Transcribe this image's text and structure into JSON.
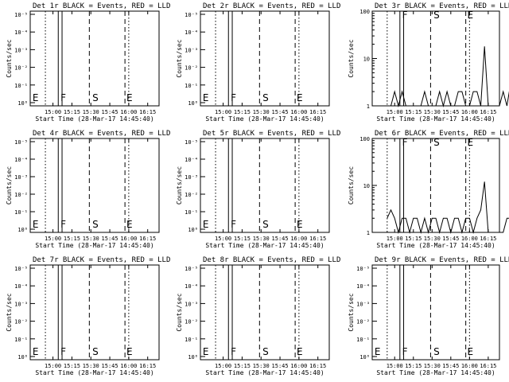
{
  "chart_data": [
    {
      "type": "line",
      "title": "Det 1r BLACK = Events, RED = LLD",
      "xlabel": "Start Time (28-Mar-17 14:45:40)",
      "ylabel": "Counts/sec",
      "x_ticks": [
        "15:00",
        "15:15",
        "15:30",
        "15:45",
        "16:00",
        "16:15"
      ],
      "y_scale": "log",
      "y_ticks": [
        "10⁰",
        "10⁻¹",
        "10⁻²",
        "10⁻³",
        "10⁻⁴",
        "10⁻⁵"
      ],
      "series": [],
      "markers": [
        "E",
        "F",
        "S",
        "E"
      ]
    },
    {
      "type": "line",
      "title": "Det 2r BLACK = Events, RED = LLD",
      "xlabel": "Start Time (28-Mar-17 14:45:40)",
      "ylabel": "Counts/sec",
      "x_ticks": [
        "15:00",
        "15:15",
        "15:30",
        "15:45",
        "16:00",
        "16:15"
      ],
      "y_scale": "log",
      "y_ticks": [
        "10⁰",
        "10⁻¹",
        "10⁻²",
        "10⁻³",
        "10⁻⁴",
        "10⁻⁵"
      ],
      "series": [],
      "markers": [
        "E",
        "F",
        "S",
        "E"
      ]
    },
    {
      "type": "line",
      "title": "Det 3r BLACK = Events, RED = LLD",
      "xlabel": "Start Time (28-Mar-17 14:45:40)",
      "ylabel": "Counts/sec",
      "x_ticks": [
        "15:00",
        "15:15",
        "15:30",
        "15:45",
        "16:00",
        "16:15"
      ],
      "y_scale": "log",
      "y_ticks": [
        "1",
        "10",
        "100"
      ],
      "series": [
        {
          "color": "#000000",
          "x": [
            14.9,
            14.95,
            15.0,
            15.05,
            15.1,
            15.15,
            15.2,
            15.25,
            15.3,
            15.35,
            15.4,
            15.45,
            15.5,
            15.55,
            15.6,
            15.65,
            15.7,
            15.75,
            15.8,
            15.85,
            15.9,
            15.95,
            16.0,
            16.05,
            16.1,
            16.15,
            16.2,
            16.25,
            16.3,
            16.35,
            16.4,
            16.45,
            16.5,
            16.55,
            16.6,
            16.65,
            16.7
          ],
          "y": [
            1,
            1,
            2,
            1,
            2,
            1,
            1,
            1,
            1,
            1,
            2,
            1,
            1,
            1,
            2,
            1,
            2,
            1,
            1,
            2,
            2,
            1,
            1,
            2,
            2,
            1,
            18,
            1,
            1,
            1,
            1,
            2,
            1,
            3,
            1,
            2,
            1
          ]
        }
      ],
      "markers": [
        "F",
        "S",
        "E"
      ]
    },
    {
      "type": "line",
      "title": "Det 4r BLACK = Events, RED = LLD",
      "xlabel": "Start Time (28-Mar-17 14:45:40)",
      "ylabel": "Counts/sec",
      "x_ticks": [
        "15:00",
        "15:15",
        "15:30",
        "15:45",
        "16:00",
        "16:15"
      ],
      "y_scale": "log",
      "y_ticks": [
        "10⁰",
        "10⁻¹",
        "10⁻²",
        "10⁻³",
        "10⁻⁴",
        "10⁻⁵"
      ],
      "series": [],
      "markers": [
        "E",
        "F",
        "S",
        "E"
      ]
    },
    {
      "type": "line",
      "title": "Det 5r BLACK = Events, RED = LLD",
      "xlabel": "Start Time (28-Mar-17 14:45:40)",
      "ylabel": "Counts/sec",
      "x_ticks": [
        "15:00",
        "15:15",
        "15:30",
        "15:45",
        "16:00",
        "16:15"
      ],
      "y_scale": "log",
      "y_ticks": [
        "10⁰",
        "10⁻¹",
        "10⁻²",
        "10⁻³",
        "10⁻⁴",
        "10⁻⁵"
      ],
      "series": [],
      "markers": [
        "E",
        "F",
        "S",
        "E"
      ]
    },
    {
      "type": "line",
      "title": "Det 6r BLACK = Events, RED = LLD",
      "xlabel": "Start Time (28-Mar-17 14:45:40)",
      "ylabel": "Counts/sec",
      "x_ticks": [
        "15:00",
        "15:15",
        "15:30",
        "15:45",
        "16:00",
        "16:15"
      ],
      "y_scale": "log",
      "y_ticks": [
        "1",
        "10",
        "100"
      ],
      "series": [
        {
          "color": "#000000",
          "x": [
            14.9,
            14.95,
            15.0,
            15.05,
            15.1,
            15.15,
            15.2,
            15.25,
            15.3,
            15.35,
            15.4,
            15.45,
            15.5,
            15.55,
            15.6,
            15.65,
            15.7,
            15.75,
            15.8,
            15.85,
            15.9,
            15.95,
            16.0,
            16.05,
            16.1,
            16.15,
            16.2,
            16.25,
            16.3,
            16.35,
            16.4,
            16.45,
            16.5,
            16.55,
            16.6,
            16.65,
            16.7
          ],
          "y": [
            2,
            3,
            2,
            1,
            2,
            2,
            1,
            2,
            2,
            1,
            2,
            1,
            2,
            2,
            1,
            2,
            2,
            1,
            2,
            2,
            1,
            2,
            2,
            1,
            2,
            3,
            12,
            1,
            1,
            1,
            1,
            1,
            2,
            2,
            1,
            2,
            1
          ]
        }
      ],
      "markers": [
        "F",
        "S",
        "E"
      ]
    },
    {
      "type": "line",
      "title": "Det 7r BLACK = Events, RED = LLD",
      "xlabel": "Start Time (28-Mar-17 14:45:40)",
      "ylabel": "Counts/sec",
      "x_ticks": [
        "15:00",
        "15:15",
        "15:30",
        "15:45",
        "16:00",
        "16:15"
      ],
      "y_scale": "log",
      "y_ticks": [
        "10⁰",
        "10⁻¹",
        "10⁻²",
        "10⁻³",
        "10⁻⁴",
        "10⁻⁵"
      ],
      "series": [],
      "markers": [
        "E",
        "F",
        "S",
        "E"
      ]
    },
    {
      "type": "line",
      "title": "Det 8r BLACK = Events, RED = LLD",
      "xlabel": "Start Time (28-Mar-17 14:45:40)",
      "ylabel": "Counts/sec",
      "x_ticks": [
        "15:00",
        "15:15",
        "15:30",
        "15:45",
        "16:00",
        "16:15"
      ],
      "y_scale": "log",
      "y_ticks": [
        "10⁰",
        "10⁻¹",
        "10⁻²",
        "10⁻³",
        "10⁻⁴",
        "10⁻⁵"
      ],
      "series": [],
      "markers": [
        "E",
        "F",
        "S",
        "E"
      ]
    },
    {
      "type": "line",
      "title": "Det 9r BLACK = Events, RED = LLD",
      "xlabel": "Start Time (28-Mar-17 14:45:40)",
      "ylabel": "Counts/sec",
      "x_ticks": [
        "15:00",
        "15:15",
        "15:30",
        "15:45",
        "16:00",
        "16:15"
      ],
      "y_scale": "log",
      "y_ticks": [
        "10⁰",
        "10⁻¹",
        "10⁻²",
        "10⁻³",
        "10⁻⁴",
        "10⁻⁵"
      ],
      "series": [],
      "markers": [
        "E",
        "F",
        "S",
        "E"
      ]
    }
  ]
}
